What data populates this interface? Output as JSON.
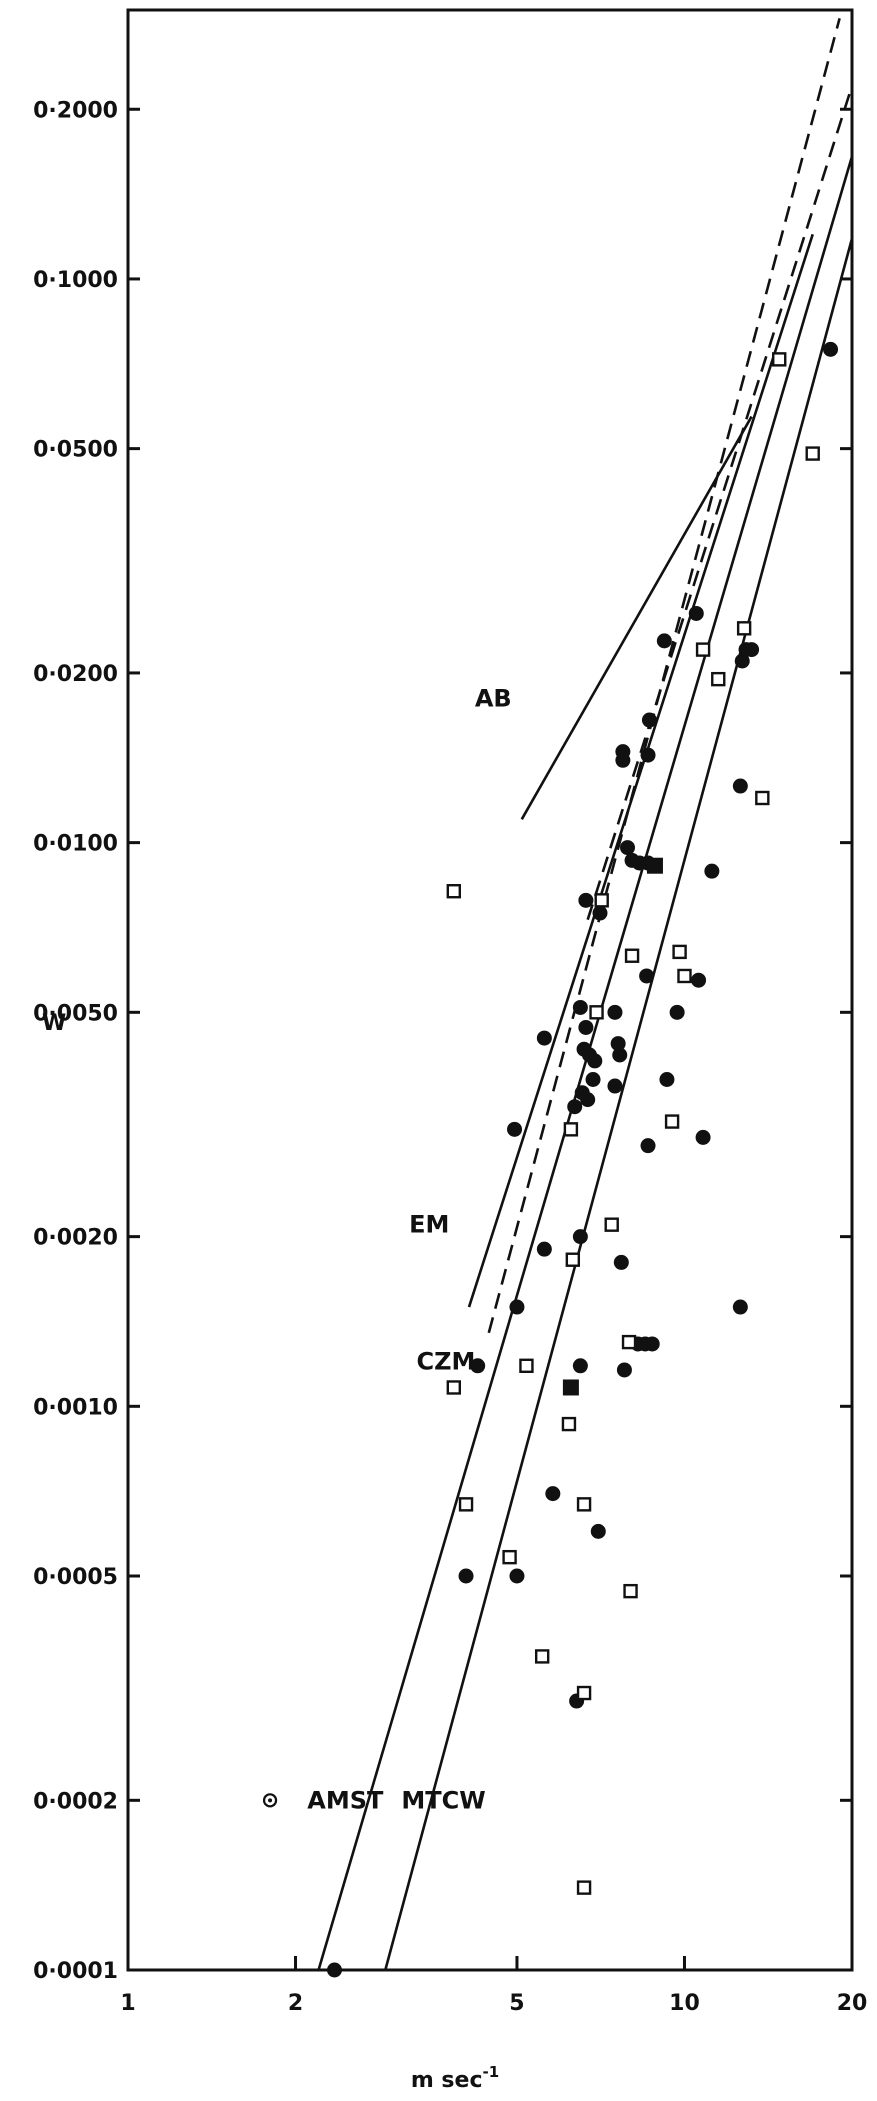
{
  "chart_data": {
    "type": "scatter",
    "title": "",
    "xlabel": "m sec",
    "xlabel_superscript": "-1",
    "ylabel": "W",
    "x_scale": "log",
    "y_scale": "log",
    "xlim": [
      1,
      20
    ],
    "ylim": [
      0.0001,
      0.3
    ],
    "x_ticks": [
      {
        "value": 1,
        "label": "1"
      },
      {
        "value": 2,
        "label": "2"
      },
      {
        "value": 5,
        "label": "5"
      },
      {
        "value": 10,
        "label": "10"
      },
      {
        "value": 20,
        "label": "20"
      }
    ],
    "y_ticks": [
      {
        "value": 0.0001,
        "label": "0·0001"
      },
      {
        "value": 0.0002,
        "label": "0·0002"
      },
      {
        "value": 0.0005,
        "label": "0·0005"
      },
      {
        "value": 0.001,
        "label": "0·0010"
      },
      {
        "value": 0.002,
        "label": "0·0020"
      },
      {
        "value": 0.005,
        "label": "0·0050"
      },
      {
        "value": 0.01,
        "label": "0·0100"
      },
      {
        "value": 0.02,
        "label": "0·0200"
      },
      {
        "value": 0.05,
        "label": "0·0500"
      },
      {
        "value": 0.1,
        "label": "0·1000"
      },
      {
        "value": 0.2,
        "label": "0·2000"
      }
    ],
    "grid": false,
    "lines": [
      {
        "name": "AB",
        "style": "solid",
        "points": [
          [
            5.1,
            0.011
          ],
          [
            13.2,
            0.057
          ]
        ],
        "label_at": [
          4.2,
          0.018
        ]
      },
      {
        "name": "EM",
        "style": "solid",
        "points": [
          [
            4.1,
            0.0015
          ],
          [
            17.0,
            0.12
          ]
        ],
        "label_at": [
          3.2,
          0.0021
        ]
      },
      {
        "name": "",
        "style": "dashed",
        "points": [
          [
            4.45,
            0.00135
          ],
          [
            19.0,
            0.29
          ]
        ],
        "label_at": null
      },
      {
        "name": "",
        "style": "dashed",
        "points": [
          [
            6.7,
            0.0073
          ],
          [
            20.0,
            0.22
          ]
        ],
        "label_at": null
      },
      {
        "name": "CZM",
        "style": "solid",
        "points": [
          [
            2.2,
            0.0001
          ],
          [
            20.0,
            0.165
          ]
        ],
        "label_at": [
          3.3,
          0.0012
        ]
      },
      {
        "name": "MTCW",
        "style": "solid",
        "points": [
          [
            2.9,
            0.0001
          ],
          [
            20.0,
            0.118
          ]
        ],
        "label_at": [
          3.1,
          0.0002
        ]
      }
    ],
    "annotations": [
      {
        "text": "AMST",
        "at": [
          2.1,
          0.0002
        ]
      }
    ],
    "series": [
      {
        "marker": "filled-circle",
        "points": [
          [
            2.35,
            0.0001
          ],
          [
            4.05,
            0.0005
          ],
          [
            5.0,
            0.0005
          ],
          [
            4.25,
            0.00118
          ],
          [
            5.0,
            0.0015
          ],
          [
            5.6,
            0.0019
          ],
          [
            4.95,
            0.0031
          ],
          [
            5.6,
            0.0045
          ],
          [
            6.35,
            0.0034
          ],
          [
            6.55,
            0.0036
          ],
          [
            6.7,
            0.0035
          ],
          [
            6.6,
            0.0043
          ],
          [
            6.75,
            0.0042
          ],
          [
            6.9,
            0.0041
          ],
          [
            6.85,
            0.0038
          ],
          [
            6.5,
            0.0051
          ],
          [
            6.65,
            0.0047
          ],
          [
            7.5,
            0.005
          ],
          [
            7.5,
            0.0037
          ],
          [
            7.65,
            0.0042
          ],
          [
            7.6,
            0.0044
          ],
          [
            6.65,
            0.0079
          ],
          [
            7.05,
            0.0075
          ],
          [
            7.9,
            0.0098
          ],
          [
            8.05,
            0.0093
          ],
          [
            8.3,
            0.0092
          ],
          [
            8.6,
            0.0092
          ],
          [
            7.75,
            0.014
          ],
          [
            7.75,
            0.0145
          ],
          [
            8.6,
            0.0143
          ],
          [
            8.65,
            0.0165
          ],
          [
            9.2,
            0.0228
          ],
          [
            10.5,
            0.0255
          ],
          [
            10.6,
            0.0057
          ],
          [
            11.2,
            0.0089
          ],
          [
            8.55,
            0.0058
          ],
          [
            9.7,
            0.005
          ],
          [
            9.3,
            0.0038
          ],
          [
            8.6,
            0.0029
          ],
          [
            10.8,
            0.003
          ],
          [
            6.5,
            0.002
          ],
          [
            7.7,
            0.0018
          ],
          [
            6.5,
            0.00118
          ],
          [
            7.8,
            0.00116
          ],
          [
            8.25,
            0.00129
          ],
          [
            8.5,
            0.00129
          ],
          [
            8.75,
            0.00129
          ],
          [
            5.8,
            0.0007
          ],
          [
            7.0,
            0.0006
          ],
          [
            6.4,
            0.0003
          ],
          [
            12.6,
            0.0126
          ],
          [
            12.7,
            0.021
          ],
          [
            12.9,
            0.022
          ],
          [
            13.2,
            0.022
          ],
          [
            12.6,
            0.0015
          ],
          [
            18.3,
            0.075
          ]
        ]
      },
      {
        "marker": "open-square",
        "points": [
          [
            3.85,
            0.0082
          ],
          [
            3.85,
            0.00108
          ],
          [
            4.05,
            0.00067
          ],
          [
            4.85,
            0.00054
          ],
          [
            5.2,
            0.00118
          ],
          [
            5.55,
            0.00036
          ],
          [
            6.2,
            0.00093
          ],
          [
            6.25,
            0.0031
          ],
          [
            6.3,
            0.00182
          ],
          [
            6.6,
            0.00067
          ],
          [
            6.6,
            0.00031
          ],
          [
            6.6,
            0.00014
          ],
          [
            6.95,
            0.005
          ],
          [
            7.1,
            0.0079
          ],
          [
            7.4,
            0.0021
          ],
          [
            8.05,
            0.0063
          ],
          [
            7.95,
            0.0013
          ],
          [
            8.0,
            0.00047
          ],
          [
            9.5,
            0.0032
          ],
          [
            9.8,
            0.0064
          ],
          [
            10.0,
            0.0058
          ],
          [
            10.8,
            0.022
          ],
          [
            11.5,
            0.0195
          ],
          [
            12.8,
            0.024
          ],
          [
            13.8,
            0.012
          ],
          [
            14.8,
            0.072
          ],
          [
            17.0,
            0.049
          ]
        ]
      },
      {
        "marker": "filled-square",
        "points": [
          [
            6.25,
            0.00108
          ],
          [
            8.85,
            0.0091
          ]
        ]
      },
      {
        "marker": "open-circle-dot",
        "points": [
          [
            1.8,
            0.0002
          ]
        ]
      }
    ]
  }
}
